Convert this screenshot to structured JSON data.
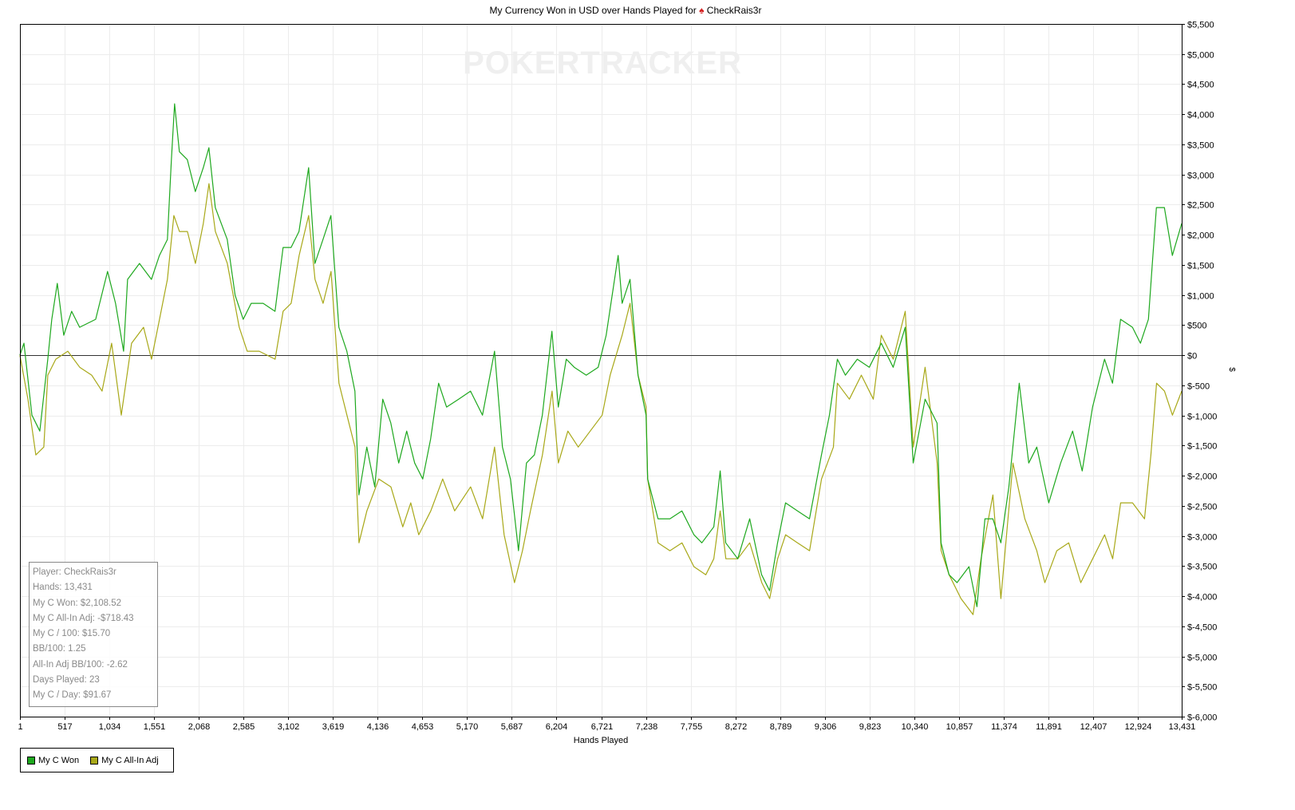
{
  "title": {
    "prefix": "My Currency Won in USD over Hands Played for",
    "icon": "spade-icon",
    "player": "CheckRais3r"
  },
  "watermark": "POKERTRACKER",
  "stats": [
    "Player: CheckRais3r",
    "Hands: 13,431",
    "My C Won: $2,108.52",
    "My C All-In Adj: -$718.43",
    "My C / 100: $15.70",
    "BB/100: 1.25",
    "All-In Adj BB/100: -2.62",
    "Days Played: 23",
    "My C / Day: $91.67"
  ],
  "legend": [
    {
      "label": "My C Won",
      "color": "#1ea81e"
    },
    {
      "label": "My C All-In Adj",
      "color": "#a8a818"
    }
  ],
  "chart_data": {
    "type": "line",
    "title": "My Currency Won in USD over Hands Played for CheckRais3r",
    "xlabel": "Hands Played",
    "ylabel": "$",
    "xlim": [
      1,
      13431
    ],
    "ylim": [
      -6000,
      5500
    ],
    "grid": true,
    "legend_position": "bottom-left",
    "x_ticks": [
      "1",
      "517",
      "1,034",
      "1,551",
      "2,068",
      "2,585",
      "3,102",
      "3,619",
      "4,136",
      "4,653",
      "5,170",
      "5,687",
      "6,204",
      "6,721",
      "7,238",
      "7,755",
      "8,272",
      "8,789",
      "9,306",
      "9,823",
      "10,340",
      "10,857",
      "11,374",
      "11,891",
      "12,407",
      "12,924",
      "13,431"
    ],
    "x_tick_values": [
      1,
      517,
      1034,
      1551,
      2068,
      2585,
      3102,
      3619,
      4136,
      4653,
      5170,
      5687,
      6204,
      6721,
      7238,
      7755,
      8272,
      8789,
      9306,
      9823,
      10340,
      10857,
      11374,
      11891,
      12407,
      12924,
      13431
    ],
    "y_ticks": [
      "$5,500",
      "$5,000",
      "$4,500",
      "$4,000",
      "$3,500",
      "$3,000",
      "$2,500",
      "$2,000",
      "$1,500",
      "$1,000",
      "$500",
      "$0",
      "$-500",
      "$-1,000",
      "$-1,500",
      "$-2,000",
      "$-2,500",
      "$-3,000",
      "$-3,500",
      "$-4,000",
      "$-4,500",
      "$-5,000",
      "$-5,500",
      "$-6,000"
    ],
    "y_tick_values": [
      5500,
      5000,
      4500,
      4000,
      3500,
      3000,
      2500,
      2000,
      1500,
      1000,
      500,
      0,
      -500,
      -1000,
      -1500,
      -2000,
      -2500,
      -3000,
      -3500,
      -4000,
      -4500,
      -5000,
      -5500,
      -6000
    ],
    "series": [
      {
        "name": "My C Won",
        "color": "#1ea81e",
        "points": [
          [
            1,
            0
          ],
          [
            47,
            199
          ],
          [
            139,
            -994
          ],
          [
            231,
            -1259
          ],
          [
            323,
            -66
          ],
          [
            369,
            596
          ],
          [
            433,
            1193
          ],
          [
            507,
            331
          ],
          [
            599,
            729
          ],
          [
            691,
            464
          ],
          [
            876,
            596
          ],
          [
            1014,
            1391
          ],
          [
            1106,
            861
          ],
          [
            1199,
            66
          ],
          [
            1245,
            1259
          ],
          [
            1383,
            1524
          ],
          [
            1521,
            1259
          ],
          [
            1613,
            1656
          ],
          [
            1706,
            1921
          ],
          [
            1752,
            3246
          ],
          [
            1789,
            4174
          ],
          [
            1844,
            3379
          ],
          [
            1936,
            3246
          ],
          [
            2028,
            2716
          ],
          [
            2121,
            3114
          ],
          [
            2185,
            3445
          ],
          [
            2259,
            2451
          ],
          [
            2397,
            1921
          ],
          [
            2489,
            994
          ],
          [
            2582,
            596
          ],
          [
            2674,
            861
          ],
          [
            2812,
            861
          ],
          [
            2950,
            729
          ],
          [
            3043,
            1789
          ],
          [
            3135,
            1789
          ],
          [
            3227,
            2054
          ],
          [
            3338,
            3114
          ],
          [
            3411,
            1524
          ],
          [
            3504,
            1921
          ],
          [
            3596,
            2319
          ],
          [
            3688,
            464
          ],
          [
            3780,
            66
          ],
          [
            3873,
            -596
          ],
          [
            3919,
            -2319
          ],
          [
            4011,
            -1524
          ],
          [
            4103,
            -2186
          ],
          [
            4195,
            -729
          ],
          [
            4288,
            -1126
          ],
          [
            4380,
            -1789
          ],
          [
            4472,
            -1259
          ],
          [
            4564,
            -1789
          ],
          [
            4657,
            -2054
          ],
          [
            4749,
            -1391
          ],
          [
            4841,
            -464
          ],
          [
            4933,
            -861
          ],
          [
            5072,
            -729
          ],
          [
            5210,
            -596
          ],
          [
            5348,
            -994
          ],
          [
            5487,
            66
          ],
          [
            5579,
            -1524
          ],
          [
            5671,
            -2054
          ],
          [
            5764,
            -3246
          ],
          [
            5856,
            -1789
          ],
          [
            5948,
            -1656
          ],
          [
            6040,
            -994
          ],
          [
            6151,
            398
          ],
          [
            6224,
            -861
          ],
          [
            6317,
            -66
          ],
          [
            6409,
            -199
          ],
          [
            6547,
            -331
          ],
          [
            6686,
            -199
          ],
          [
            6778,
            331
          ],
          [
            6916,
            1656
          ],
          [
            6962,
            861
          ],
          [
            7054,
            1259
          ],
          [
            7146,
            -331
          ],
          [
            7239,
            -994
          ],
          [
            7257,
            -2054
          ],
          [
            7377,
            -2716
          ],
          [
            7515,
            -2716
          ],
          [
            7653,
            -2584
          ],
          [
            7792,
            -2981
          ],
          [
            7884,
            -3114
          ],
          [
            8022,
            -2849
          ],
          [
            8096,
            -1921
          ],
          [
            8160,
            -3114
          ],
          [
            8299,
            -3379
          ],
          [
            8437,
            -2716
          ],
          [
            8575,
            -3644
          ],
          [
            8667,
            -3909
          ],
          [
            8759,
            -3114
          ],
          [
            8851,
            -2451
          ],
          [
            8990,
            -2584
          ],
          [
            9128,
            -2716
          ],
          [
            9266,
            -1656
          ],
          [
            9359,
            -994
          ],
          [
            9451,
            -66
          ],
          [
            9543,
            -331
          ],
          [
            9681,
            -66
          ],
          [
            9820,
            -199
          ],
          [
            9958,
            199
          ],
          [
            10096,
            -199
          ],
          [
            10235,
            464
          ],
          [
            10327,
            -1789
          ],
          [
            10465,
            -729
          ],
          [
            10603,
            -1126
          ],
          [
            10649,
            -3114
          ],
          [
            10741,
            -3644
          ],
          [
            10834,
            -3776
          ],
          [
            10972,
            -3511
          ],
          [
            11064,
            -4174
          ],
          [
            11156,
            -2716
          ],
          [
            11248,
            -2716
          ],
          [
            11341,
            -3114
          ],
          [
            11433,
            -2186
          ],
          [
            11553,
            -464
          ],
          [
            11663,
            -1789
          ],
          [
            11756,
            -1524
          ],
          [
            11894,
            -2451
          ],
          [
            12032,
            -1789
          ],
          [
            12170,
            -1259
          ],
          [
            12281,
            -1921
          ],
          [
            12401,
            -861
          ],
          [
            12539,
            -66
          ],
          [
            12631,
            -464
          ],
          [
            12724,
            596
          ],
          [
            12862,
            464
          ],
          [
            12954,
            199
          ],
          [
            13046,
            596
          ],
          [
            13092,
            1524
          ],
          [
            13139,
            2451
          ],
          [
            13231,
            2451
          ],
          [
            13323,
            1656
          ],
          [
            13431,
            2186
          ]
        ]
      },
      {
        "name": "My C All-In Adj",
        "color": "#a8a818",
        "points": [
          [
            1,
            0
          ],
          [
            93,
            -729
          ],
          [
            185,
            -1656
          ],
          [
            277,
            -1524
          ],
          [
            323,
            -331
          ],
          [
            415,
            -66
          ],
          [
            554,
            66
          ],
          [
            692,
            -199
          ],
          [
            830,
            -331
          ],
          [
            950,
            -596
          ],
          [
            1061,
            199
          ],
          [
            1172,
            -994
          ],
          [
            1291,
            199
          ],
          [
            1430,
            464
          ],
          [
            1522,
            -66
          ],
          [
            1614,
            596
          ],
          [
            1706,
            1259
          ],
          [
            1780,
            2319
          ],
          [
            1845,
            2054
          ],
          [
            1937,
            2054
          ],
          [
            2029,
            1524
          ],
          [
            2121,
            2186
          ],
          [
            2186,
            2849
          ],
          [
            2260,
            2054
          ],
          [
            2398,
            1524
          ],
          [
            2536,
            464
          ],
          [
            2628,
            66
          ],
          [
            2767,
            66
          ],
          [
            2951,
            -66
          ],
          [
            3043,
            729
          ],
          [
            3136,
            861
          ],
          [
            3228,
            1656
          ],
          [
            3338,
            2319
          ],
          [
            3412,
            1259
          ],
          [
            3505,
            861
          ],
          [
            3597,
            1391
          ],
          [
            3689,
            -464
          ],
          [
            3781,
            -994
          ],
          [
            3874,
            -1524
          ],
          [
            3920,
            -3114
          ],
          [
            4012,
            -2584
          ],
          [
            4150,
            -2054
          ],
          [
            4289,
            -2186
          ],
          [
            4427,
            -2849
          ],
          [
            4519,
            -2451
          ],
          [
            4611,
            -2981
          ],
          [
            4750,
            -2584
          ],
          [
            4888,
            -2054
          ],
          [
            5026,
            -2584
          ],
          [
            5211,
            -2186
          ],
          [
            5349,
            -2716
          ],
          [
            5487,
            -1524
          ],
          [
            5598,
            -2981
          ],
          [
            5718,
            -3776
          ],
          [
            5810,
            -3246
          ],
          [
            5902,
            -2584
          ],
          [
            6041,
            -1656
          ],
          [
            6152,
            -596
          ],
          [
            6225,
            -1789
          ],
          [
            6335,
            -1259
          ],
          [
            6455,
            -1524
          ],
          [
            6593,
            -1259
          ],
          [
            6732,
            -994
          ],
          [
            6824,
            -331
          ],
          [
            6962,
            331
          ],
          [
            7054,
            861
          ],
          [
            7147,
            -331
          ],
          [
            7239,
            -861
          ],
          [
            7257,
            -2054
          ],
          [
            7377,
            -3114
          ],
          [
            7515,
            -3246
          ],
          [
            7654,
            -3114
          ],
          [
            7792,
            -3511
          ],
          [
            7930,
            -3644
          ],
          [
            8022,
            -3379
          ],
          [
            8096,
            -2584
          ],
          [
            8161,
            -3379
          ],
          [
            8299,
            -3379
          ],
          [
            8437,
            -3114
          ],
          [
            8576,
            -3776
          ],
          [
            8668,
            -4041
          ],
          [
            8760,
            -3379
          ],
          [
            8852,
            -2981
          ],
          [
            8990,
            -3114
          ],
          [
            9129,
            -3246
          ],
          [
            9267,
            -2054
          ],
          [
            9405,
            -1524
          ],
          [
            9451,
            -464
          ],
          [
            9589,
            -729
          ],
          [
            9728,
            -331
          ],
          [
            9866,
            -729
          ],
          [
            9958,
            331
          ],
          [
            10097,
            -66
          ],
          [
            10235,
            729
          ],
          [
            10327,
            -1524
          ],
          [
            10465,
            -199
          ],
          [
            10604,
            -1789
          ],
          [
            10650,
            -3246
          ],
          [
            10742,
            -3644
          ],
          [
            10880,
            -4041
          ],
          [
            11019,
            -4306
          ],
          [
            11111,
            -3379
          ],
          [
            11249,
            -2319
          ],
          [
            11341,
            -4041
          ],
          [
            11480,
            -1789
          ],
          [
            11618,
            -2716
          ],
          [
            11756,
            -3246
          ],
          [
            11849,
            -3776
          ],
          [
            11987,
            -3246
          ],
          [
            12125,
            -3114
          ],
          [
            12264,
            -3776
          ],
          [
            12402,
            -3379
          ],
          [
            12540,
            -2981
          ],
          [
            12633,
            -3379
          ],
          [
            12725,
            -2451
          ],
          [
            12863,
            -2451
          ],
          [
            13001,
            -2716
          ],
          [
            13075,
            -1656
          ],
          [
            13140,
            -464
          ],
          [
            13232,
            -596
          ],
          [
            13324,
            -994
          ],
          [
            13431,
            -596
          ]
        ]
      }
    ]
  }
}
